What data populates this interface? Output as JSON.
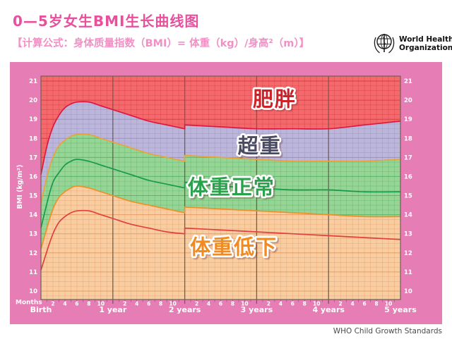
{
  "header": {
    "title": "0—5岁女生BMI生长曲线图",
    "subtitle": "【计算公式：身体质量指数（BMI）= 体重（kg）/身高²（m）】",
    "who_logo": {
      "line1": "World Health",
      "line2": "Organization"
    }
  },
  "footer": {
    "credit": "WHO Child Growth Standards"
  },
  "colors": {
    "panel_pink": "#e77db5",
    "title_pink": "#e8509e",
    "subtitle_pink": "#f190c5",
    "axis_text": "#ffffff",
    "tick_line": "#6e6052",
    "footer_text": "#4b4b4b"
  },
  "chart_data": {
    "type": "area",
    "title": "0—5岁女生BMI生长曲线图",
    "ylabel": "BMI (kg/m²)",
    "x_unit_label": "Months",
    "ylim": [
      10,
      21
    ],
    "xlim_months": [
      0,
      60
    ],
    "y_tick_step": 1,
    "y_axis_side": "both",
    "grid": {
      "on": true,
      "x_minor_months": 1,
      "y_minor": 0.25
    },
    "x_year_labels": [
      "Birth",
      "1 year",
      "2 years",
      "3 years",
      "4 years",
      "5 years"
    ],
    "x_minor_tick_labels": [
      2,
      4,
      6,
      8,
      10
    ],
    "knots_months_0_24": [
      0,
      1,
      2,
      3,
      4,
      5,
      6,
      8,
      10,
      12,
      15,
      18,
      21,
      24
    ],
    "knots_months_24_60": [
      24,
      30,
      36,
      42,
      48,
      54,
      60
    ],
    "series": [
      {
        "id": "plus2sd",
        "name": "+2 SD (obesity cutoff)",
        "color": "#e0173c",
        "bmi_0_24": [
          16.1,
          17.6,
          18.6,
          19.2,
          19.6,
          19.8,
          19.9,
          19.9,
          19.7,
          19.5,
          19.2,
          18.9,
          18.7,
          18.5
        ],
        "bmi_24_60": [
          18.7,
          18.6,
          18.5,
          18.5,
          18.5,
          18.7,
          18.9
        ]
      },
      {
        "id": "plus1sd",
        "name": "+1 SD (overweight cutoff)",
        "color": "#eaa338",
        "bmi_0_24": [
          14.6,
          16.0,
          17.0,
          17.6,
          17.9,
          18.1,
          18.2,
          18.2,
          18.0,
          17.8,
          17.5,
          17.2,
          17.0,
          16.8
        ],
        "bmi_24_60": [
          17.1,
          17.0,
          16.9,
          16.8,
          16.8,
          16.8,
          16.9
        ]
      },
      {
        "id": "median",
        "name": "Median",
        "color": "#169a4c",
        "bmi_0_24": [
          13.3,
          14.6,
          15.7,
          16.2,
          16.6,
          16.8,
          16.9,
          16.8,
          16.6,
          16.4,
          16.1,
          15.8,
          15.6,
          15.4
        ],
        "bmi_24_60": [
          15.7,
          15.5,
          15.4,
          15.3,
          15.3,
          15.2,
          15.2
        ]
      },
      {
        "id": "minus1sd",
        "name": "-1 SD (underweight cutoff)",
        "color": "#ec9229",
        "bmi_0_24": [
          12.2,
          13.3,
          14.3,
          14.9,
          15.2,
          15.4,
          15.5,
          15.4,
          15.2,
          15.0,
          14.7,
          14.5,
          14.3,
          14.1
        ],
        "bmi_24_60": [
          14.4,
          14.3,
          14.2,
          14.1,
          14.0,
          13.9,
          13.9
        ]
      },
      {
        "id": "minus2sd",
        "name": "-2 SD",
        "color": "#e23f3f",
        "bmi_0_24": [
          11.1,
          12.1,
          13.0,
          13.6,
          13.9,
          14.1,
          14.2,
          14.2,
          14.0,
          13.8,
          13.5,
          13.3,
          13.1,
          13.0
        ],
        "bmi_24_60": [
          13.3,
          13.2,
          13.1,
          13.0,
          12.9,
          12.8,
          12.7
        ]
      }
    ],
    "zones": [
      {
        "name": "obese",
        "label": "肥胖",
        "upper": "plot_top",
        "lower": 0,
        "fill": "#f4696c",
        "grid_color": "#d63a42",
        "label_color": "#cd2127",
        "label_pos": {
          "months": 39,
          "bmi": 20.05
        }
      },
      {
        "name": "overweight",
        "label": "超重",
        "upper": 0,
        "lower": 1,
        "fill": "#bcb6da",
        "grid_color": "#958dbf",
        "label_color": "#4a4a63",
        "label_pos": {
          "months": 36.5,
          "bmi": 17.6
        }
      },
      {
        "name": "normal",
        "label": "体重正常",
        "upper": 1,
        "lower": 3,
        "fill": "#96d596",
        "grid_color": "#57b264",
        "label_color": "#2aa14b",
        "label_pos": {
          "months": 31.8,
          "bmi": 15.45
        }
      },
      {
        "name": "underweight",
        "label": "体重低下",
        "upper": 3,
        "lower": "plot_bottom",
        "fill": "#f9cda2",
        "grid_color": "#e3995e",
        "label_color": "#f18a1f",
        "label_pos": {
          "months": 32.2,
          "bmi": 12.3
        }
      }
    ],
    "footnote": "WHO Child Growth Standards"
  }
}
